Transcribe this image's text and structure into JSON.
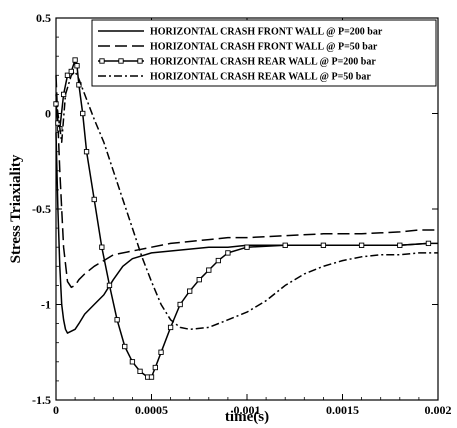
{
  "chart_data": {
    "type": "line",
    "title": "",
    "xlabel": "time(s)",
    "ylabel": "Stress Triaxiality",
    "xlim": [
      0,
      0.002
    ],
    "ylim": [
      -1.5,
      0.5
    ],
    "xticks": [
      0,
      0.0005,
      0.001,
      0.0015,
      0.002
    ],
    "xtick_labels": [
      "0",
      "0.0005",
      "0.001",
      "0.0015",
      "0.002"
    ],
    "yticks": [
      0.5,
      0,
      -0.5,
      -1,
      -1.5
    ],
    "ytick_labels": [
      "0.5",
      "0",
      "-0.5",
      "-1",
      "-1.5"
    ],
    "grid": false,
    "legend_position": "top-right",
    "series": [
      {
        "name": "HORIZONTAL  CRASH FRONT  WALL @  P=200 bar",
        "style": "solid",
        "color": "#000000",
        "x": [
          0,
          1e-05,
          2e-05,
          3e-05,
          4e-05,
          5e-05,
          6e-05,
          8e-05,
          0.0001,
          0.00012,
          0.00015,
          0.0002,
          0.00025,
          0.0003,
          0.00035,
          0.0004,
          0.0005,
          0.0006,
          0.0007,
          0.0008,
          0.0009,
          0.001,
          0.0012,
          0.0014,
          0.0016,
          0.0018,
          0.00195,
          0.002
        ],
        "y": [
          -0.1,
          -0.5,
          -0.8,
          -1.0,
          -1.08,
          -1.13,
          -1.15,
          -1.14,
          -1.13,
          -1.1,
          -1.05,
          -1.0,
          -0.95,
          -0.87,
          -0.8,
          -0.76,
          -0.73,
          -0.72,
          -0.71,
          -0.7,
          -0.7,
          -0.69,
          -0.69,
          -0.69,
          -0.69,
          -0.69,
          -0.68,
          -0.68
        ]
      },
      {
        "name": "HORIZONTAL  CRASH FRONT  WALL @  P=50 bar",
        "style": "dashed",
        "color": "#000000",
        "x": [
          0,
          2e-05,
          4e-05,
          6e-05,
          8e-05,
          0.0001,
          0.00012,
          0.00015,
          0.0002,
          0.00025,
          0.0003,
          0.0004,
          0.0005,
          0.0006,
          0.0007,
          0.0008,
          0.0009,
          0.001,
          0.0012,
          0.0014,
          0.0016,
          0.0018,
          0.0019,
          0.002
        ],
        "y": [
          0.2,
          -0.3,
          -0.7,
          -0.88,
          -0.91,
          -0.9,
          -0.87,
          -0.84,
          -0.8,
          -0.77,
          -0.74,
          -0.72,
          -0.7,
          -0.68,
          -0.67,
          -0.66,
          -0.65,
          -0.65,
          -0.64,
          -0.63,
          -0.63,
          -0.62,
          -0.61,
          -0.61
        ]
      },
      {
        "name": "HORIZONTAL  CRASH REAR WALL @ P=200 bar",
        "style": "solid-square-markers",
        "color": "#000000",
        "x": [
          0,
          1e-05,
          2e-05,
          4e-05,
          6e-05,
          8e-05,
          0.0001,
          0.00011,
          0.00012,
          0.00014,
          0.00016,
          0.0002,
          0.00024,
          0.00028,
          0.00032,
          0.00036,
          0.0004,
          0.00044,
          0.00048,
          0.0005,
          0.00052,
          0.00055,
          0.0006,
          0.00065,
          0.0007,
          0.00075,
          0.0008,
          0.00085,
          0.0009,
          0.001,
          0.0012,
          0.0014,
          0.0016,
          0.0018,
          0.00195
        ],
        "y": [
          0.05,
          -0.05,
          -0.08,
          0.1,
          0.2,
          0.22,
          0.28,
          0.25,
          0.15,
          0.0,
          -0.2,
          -0.45,
          -0.7,
          -0.9,
          -1.08,
          -1.22,
          -1.3,
          -1.35,
          -1.38,
          -1.38,
          -1.33,
          -1.25,
          -1.12,
          -1.0,
          -0.93,
          -0.87,
          -0.82,
          -0.77,
          -0.73,
          -0.7,
          -0.69,
          -0.69,
          -0.69,
          -0.69,
          -0.68
        ]
      },
      {
        "name": "HORIZONTAL  CRASH REAR WALL @ P=50 bar",
        "style": "dash-dot",
        "color": "#000000",
        "x": [
          0,
          1e-05,
          3e-05,
          5e-05,
          8e-05,
          0.0001,
          0.00012,
          0.00015,
          0.0002,
          0.00025,
          0.0003,
          0.00035,
          0.0004,
          0.00045,
          0.0005,
          0.00055,
          0.0006,
          0.00065,
          0.0007,
          0.0008,
          0.0009,
          0.001,
          0.0011,
          0.0012,
          0.0013,
          0.0014,
          0.0015,
          0.0016,
          0.0017,
          0.0018,
          0.0019,
          0.002
        ],
        "y": [
          0.1,
          0.0,
          -0.15,
          0.1,
          0.2,
          0.22,
          0.18,
          0.1,
          -0.03,
          -0.15,
          -0.3,
          -0.45,
          -0.6,
          -0.75,
          -0.88,
          -1.0,
          -1.08,
          -1.12,
          -1.13,
          -1.12,
          -1.08,
          -1.04,
          -0.98,
          -0.9,
          -0.84,
          -0.8,
          -0.77,
          -0.75,
          -0.74,
          -0.74,
          -0.73,
          -0.73
        ]
      }
    ]
  }
}
